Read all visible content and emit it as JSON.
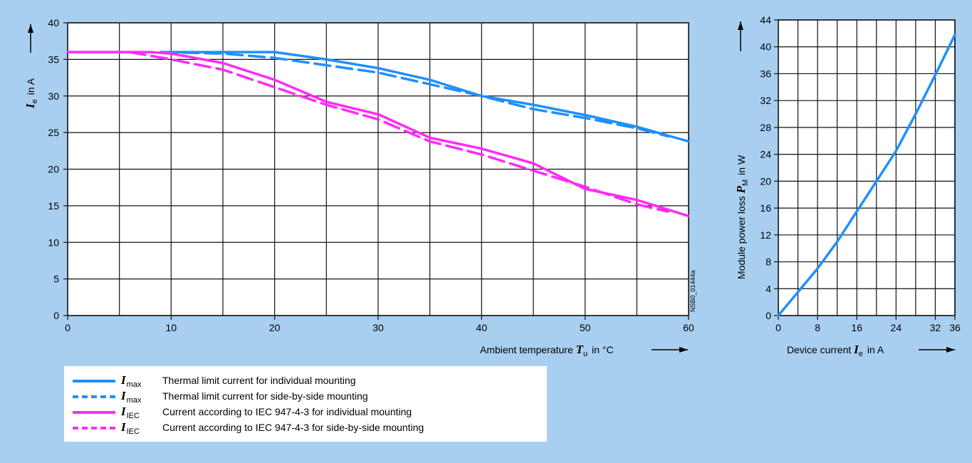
{
  "chart_data": [
    {
      "type": "line",
      "title": "",
      "xlabel": "Ambient temperature",
      "xlabel_symbol": "T",
      "xlabel_sub": "u",
      "xlabel_unit": "in °C",
      "ylabel_symbol": "I",
      "ylabel_sub": "e",
      "ylabel_unit": "in A",
      "xlim": [
        0,
        60
      ],
      "ylim": [
        0,
        40
      ],
      "xticks": [
        0,
        10,
        20,
        30,
        40,
        50,
        60
      ],
      "yticks": [
        0,
        5,
        10,
        15,
        20,
        25,
        30,
        35,
        40
      ],
      "grid": true,
      "code": "NSB0_01444a",
      "series": [
        {
          "name": "Thermal limit current for individual mounting",
          "symbol": "I",
          "sub": "max",
          "color": "#1e90ff",
          "dashed": false,
          "x": [
            9,
            20,
            25,
            30,
            35,
            40,
            45,
            50,
            55,
            60
          ],
          "y": [
            36,
            36,
            35,
            33.8,
            32.2,
            30,
            28.8,
            27.4,
            25.8,
            23.8
          ]
        },
        {
          "name": "Thermal limit current for side-by-side mounting",
          "symbol": "I",
          "sub": "max",
          "color": "#1e90ff",
          "dashed": true,
          "x": [
            9,
            15,
            20,
            25,
            30,
            35,
            40,
            45,
            50,
            55,
            58
          ],
          "y": [
            36,
            35.8,
            35.2,
            34.2,
            33.2,
            31.6,
            30,
            28.2,
            27,
            25.6,
            24.5
          ]
        },
        {
          "name": "Current according to IEC 947-4-3 for individual mounting",
          "symbol": "I",
          "sub": "IEC",
          "color": "#ff2bf5",
          "dashed": false,
          "x": [
            0,
            8,
            10,
            15,
            20,
            25,
            30,
            35,
            40,
            45,
            50,
            55,
            60
          ],
          "y": [
            36,
            36,
            35.8,
            34.5,
            32.2,
            29.2,
            27.5,
            24.3,
            22.8,
            20.8,
            17.3,
            15.8,
            13.6
          ]
        },
        {
          "name": "Current according to IEC 947-4-3 for side-by-side mounting",
          "symbol": "I",
          "sub": "IEC",
          "color": "#ff2bf5",
          "dashed": true,
          "x": [
            6,
            10,
            15,
            20,
            25,
            30,
            35,
            40,
            45,
            50,
            55,
            58
          ],
          "y": [
            36,
            35,
            33.6,
            31.2,
            28.8,
            26.8,
            23.8,
            22,
            19.8,
            17.6,
            15.2,
            14.2
          ]
        }
      ]
    },
    {
      "type": "line",
      "title": "",
      "xlabel": "Device current",
      "xlabel_symbol": "I",
      "xlabel_sub": "e",
      "xlabel_unit": "in A",
      "ylabel": "Module power loss",
      "ylabel_symbol": "P",
      "ylabel_sub": "M",
      "ylabel_unit": "in W",
      "xlim": [
        0,
        36
      ],
      "ylim": [
        0,
        44
      ],
      "xticks": [
        0,
        8,
        16,
        24,
        32,
        36
      ],
      "yticks": [
        0,
        4,
        8,
        12,
        16,
        20,
        24,
        28,
        32,
        36,
        40,
        44
      ],
      "grid": true,
      "series": [
        {
          "color": "#1e90ff",
          "x": [
            0,
            4,
            8,
            12,
            16,
            20,
            24,
            28,
            32,
            36
          ],
          "y": [
            0,
            3.5,
            7,
            11,
            15.5,
            20,
            24.5,
            30,
            35.8,
            41.8
          ]
        }
      ]
    }
  ],
  "legend": [
    {
      "symbol": "I",
      "sub": "max",
      "text": "Thermal limit current for individual mounting",
      "color": "#1e90ff",
      "dashed": false
    },
    {
      "symbol": "I",
      "sub": "max",
      "text": "Thermal limit current for side-by-side mounting",
      "color": "#1e90ff",
      "dashed": true
    },
    {
      "symbol": "I",
      "sub": "IEC",
      "text": "Current according to IEC 947-4-3 for individual mounting",
      "color": "#ff2bf5",
      "dashed": false
    },
    {
      "symbol": "I",
      "sub": "IEC",
      "text": "Current according to IEC 947-4-3 for side-by-side mounting",
      "color": "#ff2bf5",
      "dashed": true
    }
  ]
}
